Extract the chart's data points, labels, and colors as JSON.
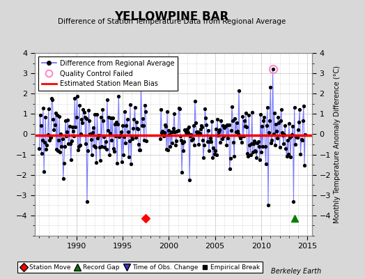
{
  "title": "YELLOWPINE BAR",
  "subtitle": "Difference of Station Temperature Data from Regional Average",
  "ylabel": "Monthly Temperature Anomaly Difference (°C)",
  "background_color": "#d8d8d8",
  "plot_bg_color": "#ffffff",
  "mean_bias": -0.05,
  "ylim": [
    -5,
    4
  ],
  "yticks": [
    -4,
    -3,
    -2,
    -1,
    0,
    1,
    2,
    3,
    4
  ],
  "xlim": [
    1985.5,
    2015.5
  ],
  "xticks": [
    1990,
    1995,
    2000,
    2005,
    2010,
    2015
  ],
  "station_move_x": 1997.5,
  "station_move_y": -4.15,
  "record_gap_x": 2013.6,
  "record_gap_y": -4.15,
  "qc_fail_x": 2011.25,
  "qc_fail_y": 3.2,
  "gap_start": 1997.6,
  "gap_end": 1999.0,
  "line_color": "#6666ff",
  "dot_color": "#000000",
  "seed": 123
}
